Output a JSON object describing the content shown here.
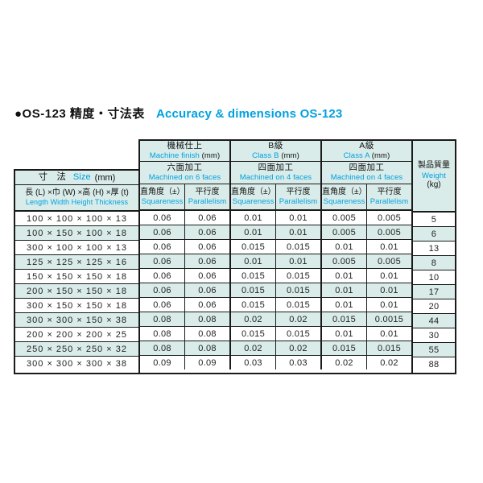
{
  "colors": {
    "accent": "#00a0e0",
    "header_bg": "#d9ece9",
    "border": "#1a1a1a"
  },
  "title": {
    "jp": "●OS-123 精度・寸法表",
    "en": "Accuracy & dimensions OS-123"
  },
  "table": {
    "size_header": {
      "jp": "寸 法",
      "en": "Size",
      "unit": "(mm)",
      "formula_jp": "長 (L) ×巾 (W) ×高 (H) ×厚 (t)",
      "formula_en": "Length  Width  Height  Thickness"
    },
    "groups": [
      {
        "jp": "機械仕上",
        "en": "Machine finish",
        "unit": "(mm)",
        "sub_jp": "六面加工",
        "sub_en": "Machined on 6 faces"
      },
      {
        "jp": "B級",
        "en": "Class B",
        "unit": "(mm)",
        "sub_jp": "四面加工",
        "sub_en": "Machined on 4 faces"
      },
      {
        "jp": "A級",
        "en": "Class A",
        "unit": "(mm)",
        "sub_jp": "四面加工",
        "sub_en": "Machined on 4 faces"
      }
    ],
    "metrics": {
      "sq_jp": "直角度（±）",
      "sq_en": "Squareness",
      "pa_jp": "平行度",
      "pa_en": "Parallelism"
    },
    "weight_header": {
      "jp": "製品質量",
      "en": "Weight",
      "unit": "(kg)"
    },
    "rows": [
      {
        "size": "100 × 100 × 100 × 13",
        "values": [
          "0.06",
          "0.06",
          "0.01",
          "0.01",
          "0.005",
          "0.005"
        ],
        "weight": "5"
      },
      {
        "size": "100 × 150 × 100 × 18",
        "values": [
          "0.06",
          "0.06",
          "0.01",
          "0.01",
          "0.005",
          "0.005"
        ],
        "weight": "6"
      },
      {
        "size": "300 × 100 × 100 × 13",
        "values": [
          "0.06",
          "0.06",
          "0.015",
          "0.015",
          "0.01",
          "0.01"
        ],
        "weight": "13"
      },
      {
        "size": "125 × 125 × 125 × 16",
        "values": [
          "0.06",
          "0.06",
          "0.01",
          "0.01",
          "0.005",
          "0.005"
        ],
        "weight": "8"
      },
      {
        "size": "150 × 150 × 150 × 18",
        "values": [
          "0.06",
          "0.06",
          "0.015",
          "0.015",
          "0.01",
          "0.01"
        ],
        "weight": "10"
      },
      {
        "size": "200 × 150 × 150 × 18",
        "values": [
          "0.06",
          "0.06",
          "0.015",
          "0.015",
          "0.01",
          "0.01"
        ],
        "weight": "17"
      },
      {
        "size": "300 × 150 × 150 × 18",
        "values": [
          "0.06",
          "0.06",
          "0.015",
          "0.015",
          "0.01",
          "0.01"
        ],
        "weight": "20"
      },
      {
        "size": "300 × 300 × 150 × 38",
        "values": [
          "0.08",
          "0.08",
          "0.02",
          "0.02",
          "0.015",
          "0.0015"
        ],
        "weight": "44"
      },
      {
        "size": "200 × 200 × 200 × 25",
        "values": [
          "0.08",
          "0.08",
          "0.015",
          "0.015",
          "0.01",
          "0.01"
        ],
        "weight": "30"
      },
      {
        "size": "250 × 250 × 250 × 32",
        "values": [
          "0.08",
          "0.08",
          "0.02",
          "0.02",
          "0.015",
          "0.015"
        ],
        "weight": "55"
      },
      {
        "size": "300 × 300 × 300 × 38",
        "values": [
          "0.09",
          "0.09",
          "0.03",
          "0.03",
          "0.02",
          "0.02"
        ],
        "weight": "88"
      }
    ]
  }
}
